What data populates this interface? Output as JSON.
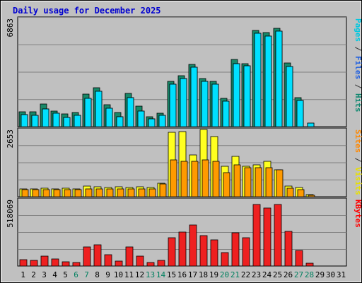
{
  "chart_data": {
    "type": "bar",
    "title": "Daily usage for December 2025",
    "categories": [
      "1",
      "2",
      "3",
      "4",
      "5",
      "6",
      "7",
      "8",
      "9",
      "10",
      "11",
      "12",
      "13",
      "14",
      "15",
      "16",
      "17",
      "18",
      "19",
      "20",
      "21",
      "22",
      "23",
      "24",
      "25",
      "26",
      "27",
      "28",
      "29",
      "30",
      "31"
    ],
    "weekend_days": [
      "6",
      "7",
      "13",
      "14",
      "20",
      "21",
      "27",
      "28"
    ],
    "panels": [
      {
        "ymax_label": "6863",
        "ymax": 6863,
        "right_label_parts": [
          {
            "text": "Pages",
            "color": "#00c8e0"
          },
          {
            "text": " / ",
            "color": "#333333"
          },
          {
            "text": "Files",
            "color": "#2060e0"
          },
          {
            "text": " / ",
            "color": "#333333"
          },
          {
            "text": "Hits",
            "color": "#108870"
          }
        ],
        "series": [
          {
            "name": "Hits",
            "color": "#188868",
            "values": [
              950,
              950,
              1450,
              1000,
              800,
              900,
              2050,
              2450,
              1400,
              900,
              2100,
              1300,
              650,
              850,
              2850,
              3250,
              3950,
              3050,
              2850,
              1800,
              4250,
              4000,
              6100,
              5950,
              6250,
              4050,
              1850,
              0,
              0,
              0,
              0
            ]
          },
          {
            "name": "Files",
            "color": "#28b0d0",
            "values": [
              750,
              700,
              1100,
              850,
              600,
              700,
              1800,
              2250,
              1150,
              650,
              1850,
              1000,
              500,
              700,
              2700,
              3050,
              3750,
              2850,
              2700,
              1600,
              4000,
              3850,
              5900,
              5750,
              6050,
              3800,
              1650,
              220,
              0,
              0,
              0
            ]
          },
          {
            "name": "Pages",
            "color": "#00e0ff",
            "values": [
              750,
              700,
              1100,
              850,
              600,
              700,
              1800,
              2250,
              1150,
              650,
              1850,
              1000,
              500,
              700,
              2700,
              3050,
              3750,
              2850,
              2700,
              1600,
              4000,
              3850,
              5900,
              5750,
              6050,
              3800,
              1650,
              220,
              0,
              0,
              0
            ]
          }
        ]
      },
      {
        "ymax_label": "2653",
        "ymax": 2653,
        "right_label_parts": [
          {
            "text": "Sites",
            "color": "#ff8800"
          },
          {
            "text": " / ",
            "color": "#333333"
          },
          {
            "text": "Visits",
            "color": "#e8e000"
          }
        ],
        "series": [
          {
            "name": "Visits",
            "color": "#ffff20",
            "values": [
              310,
              310,
              330,
              310,
              330,
              310,
              430,
              400,
              360,
              380,
              360,
              380,
              360,
              530,
              2550,
              2580,
              1650,
              2650,
              2380,
              1200,
              1590,
              1210,
              1250,
              1390,
              1050,
              410,
              350,
              90,
              0,
              0,
              0
            ]
          },
          {
            "name": "Sites",
            "color": "#ff9a00",
            "values": [
              270,
              270,
              270,
              270,
              270,
              270,
              300,
              300,
              300,
              300,
              300,
              300,
              300,
              500,
              1450,
              1400,
              1400,
              1450,
              1400,
              950,
              1250,
              1150,
              1150,
              1150,
              1050,
              330,
              270,
              60,
              0,
              0,
              0
            ]
          }
        ]
      },
      {
        "ymax_label": "518069",
        "ymax": 518069,
        "right_label_parts": [
          {
            "text": "KBytes",
            "color": "#ff0000"
          }
        ],
        "series": [
          {
            "name": "KBytes",
            "color": "#ee2020",
            "values": [
              48000,
              44000,
              78000,
              56000,
              32000,
              28000,
              148000,
              168000,
              86000,
              40000,
              148000,
              78000,
              28000,
              44000,
              220000,
              262000,
              318000,
              237000,
              205000,
              105000,
              257000,
              223000,
              480000,
              450000,
              480000,
              272000,
              120000,
              20000,
              0,
              0,
              0
            ]
          }
        ]
      }
    ]
  }
}
